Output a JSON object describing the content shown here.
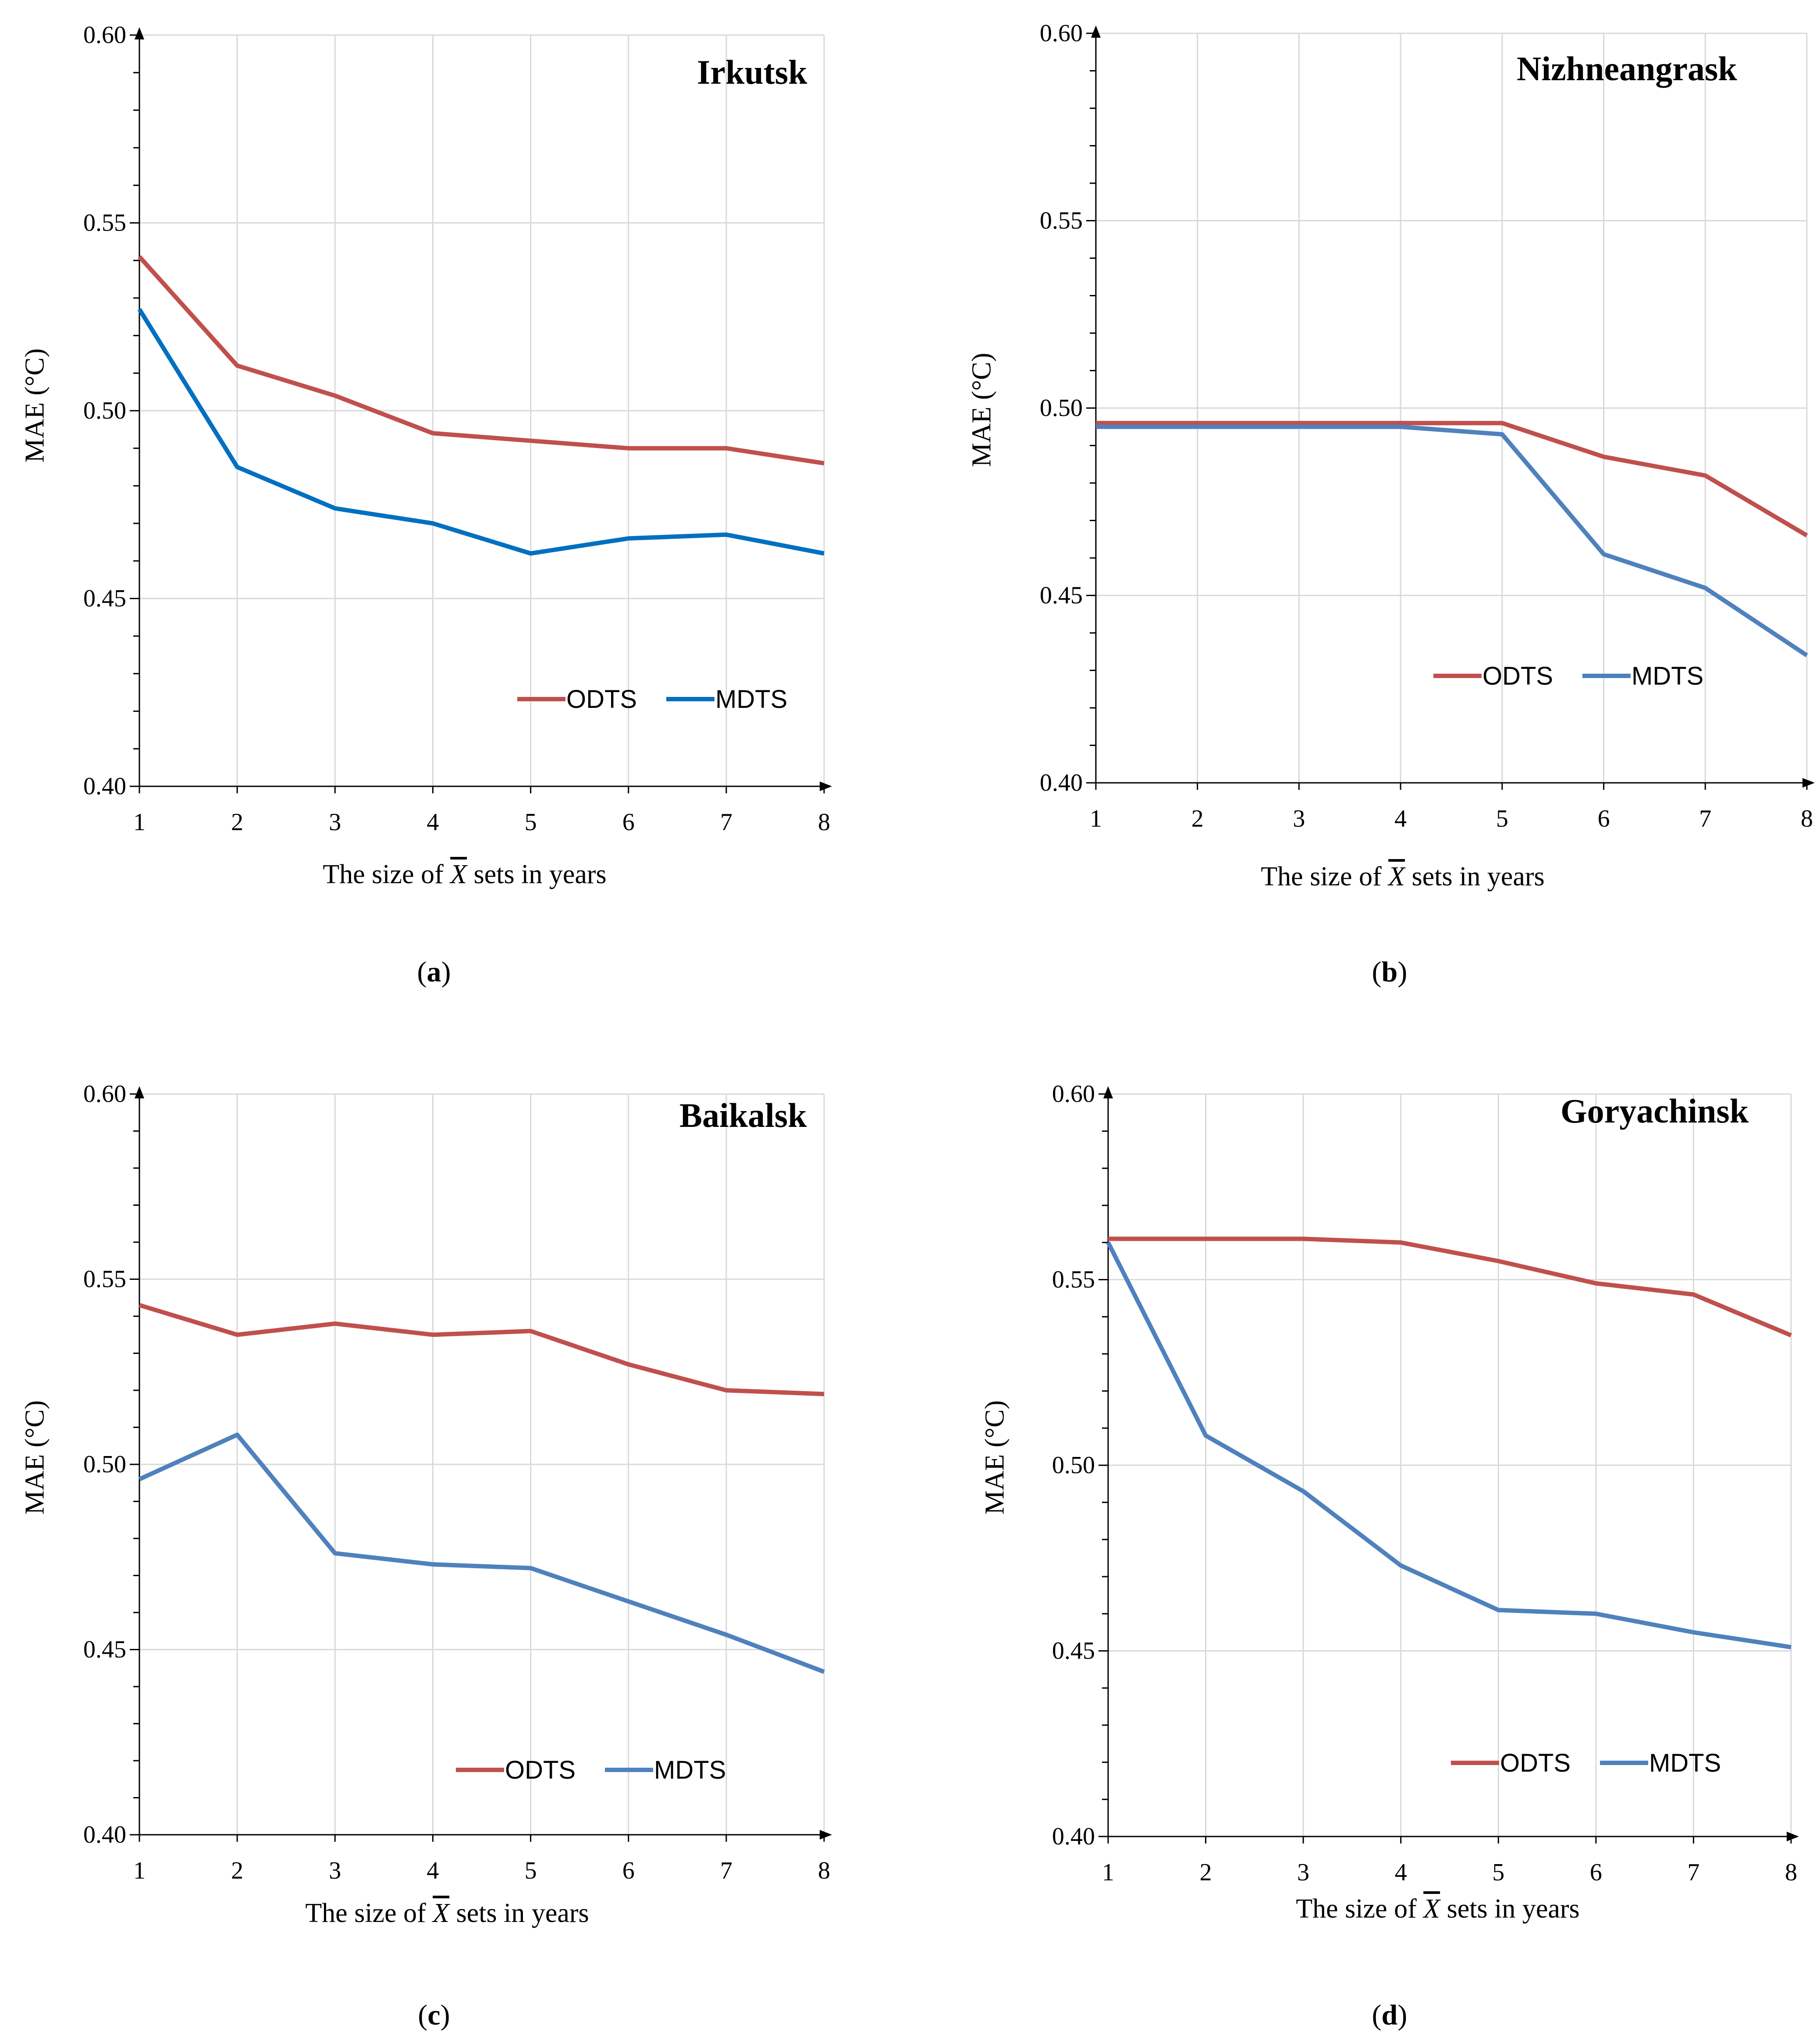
{
  "chart_data": [
    {
      "id": "a",
      "type": "line",
      "title": "Irkutsk",
      "xlabel_pre": "The size of",
      "xlabel_sym": "X",
      "xlabel_post": "sets in years",
      "ylabel": "MAE (°C)",
      "caption_letter": "a",
      "x": [
        1,
        2,
        3,
        4,
        5,
        6,
        7,
        8
      ],
      "ylim": [
        0.4,
        0.6
      ],
      "yticks": [
        "0.40",
        "0.45",
        "0.50",
        "0.55",
        "0.60"
      ],
      "legend_position": "bottom-right",
      "series": [
        {
          "name": "ODTS",
          "color": "#c0504d",
          "values": [
            0.541,
            0.512,
            0.504,
            0.494,
            0.492,
            0.49,
            0.49,
            0.486
          ]
        },
        {
          "name": "MDTS",
          "color": "#0070c0",
          "values": [
            0.527,
            0.485,
            0.474,
            0.47,
            0.462,
            0.466,
            0.467,
            0.462
          ]
        }
      ]
    },
    {
      "id": "b",
      "type": "line",
      "title": "Nizhneangrask",
      "xlabel_pre": "The size of",
      "xlabel_sym": "X",
      "xlabel_post": "sets in years",
      "ylabel": "MAE (°C)",
      "caption_letter": "b",
      "x": [
        1,
        2,
        3,
        4,
        5,
        6,
        7,
        8
      ],
      "ylim": [
        0.4,
        0.6
      ],
      "yticks": [
        "0.40",
        "0.45",
        "0.50",
        "0.55",
        "0.60"
      ],
      "legend_position": "bottom-right",
      "series": [
        {
          "name": "ODTS",
          "color": "#c0504d",
          "values": [
            0.496,
            0.496,
            0.496,
            0.496,
            0.496,
            0.487,
            0.482,
            0.466
          ]
        },
        {
          "name": "MDTS",
          "color": "#4f81bd",
          "values": [
            0.495,
            0.495,
            0.495,
            0.495,
            0.493,
            0.461,
            0.452,
            0.434
          ]
        }
      ]
    },
    {
      "id": "c",
      "type": "line",
      "title": "Baikalsk",
      "xlabel_pre": "The size of",
      "xlabel_sym": "X",
      "xlabel_post": "sets in years",
      "ylabel": "MAE (°C)",
      "caption_letter": "c",
      "x": [
        1,
        2,
        3,
        4,
        5,
        6,
        7,
        8
      ],
      "ylim": [
        0.4,
        0.6
      ],
      "yticks": [
        "0.40",
        "0.45",
        "0.50",
        "0.55",
        "0.60"
      ],
      "legend_position": "bottom-right",
      "series": [
        {
          "name": "ODTS",
          "color": "#c0504d",
          "values": [
            0.543,
            0.535,
            0.538,
            0.535,
            0.536,
            0.527,
            0.52,
            0.519
          ]
        },
        {
          "name": "MDTS",
          "color": "#4f81bd",
          "values": [
            0.496,
            0.508,
            0.476,
            0.473,
            0.472,
            0.463,
            0.454,
            0.444
          ]
        }
      ]
    },
    {
      "id": "d",
      "type": "line",
      "title": "Goryachinsk",
      "xlabel_pre": "The size of",
      "xlabel_sym": "X",
      "xlabel_post": "sets in years",
      "ylabel": "MAE (°C)",
      "caption_letter": "d",
      "x": [
        1,
        2,
        3,
        4,
        5,
        6,
        7,
        8
      ],
      "ylim": [
        0.4,
        0.6
      ],
      "yticks": [
        "0.40",
        "0.45",
        "0.50",
        "0.55",
        "0.60"
      ],
      "legend_position": "bottom-right",
      "series": [
        {
          "name": "ODTS",
          "color": "#c0504d",
          "values": [
            0.561,
            0.561,
            0.561,
            0.56,
            0.555,
            0.549,
            0.546,
            0.535
          ]
        },
        {
          "name": "MDTS",
          "color": "#4f81bd",
          "values": [
            0.56,
            0.508,
            0.493,
            0.473,
            0.461,
            0.46,
            0.455,
            0.451
          ]
        }
      ]
    }
  ]
}
